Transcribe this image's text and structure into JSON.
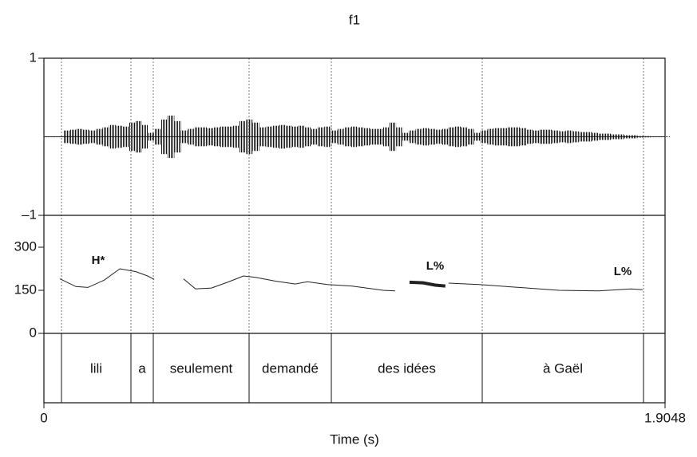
{
  "chart_data": {
    "type": "line",
    "title": "f1",
    "xlabel": "Time (s)",
    "xlim": [
      0,
      1.9048
    ],
    "xticks": [
      0,
      1.9048
    ],
    "waveform": {
      "ylim": [
        -1,
        1
      ],
      "yticks": [
        {
          "value": -1,
          "label": "–1"
        },
        1
      ],
      "color": "#111111",
      "x": [
        0,
        0.02,
        0.04,
        0.06,
        0.08,
        0.1,
        0.12,
        0.14,
        0.16,
        0.18,
        0.2,
        0.22,
        0.24,
        0.26,
        0.28,
        0.3,
        0.32,
        0.34,
        0.36,
        0.38,
        0.4,
        0.42,
        0.44,
        0.46,
        0.48,
        0.5,
        0.52,
        0.54,
        0.56,
        0.58,
        0.6,
        0.62,
        0.64,
        0.66,
        0.68,
        0.7,
        0.72,
        0.74,
        0.76,
        0.78,
        0.8,
        0.82,
        0.84,
        0.86,
        0.88,
        0.9,
        0.92,
        0.94,
        0.96,
        0.98,
        1,
        1.02,
        1.04,
        1.06,
        1.08,
        1.1,
        1.12,
        1.14,
        1.16,
        1.18,
        1.2,
        1.22,
        1.24,
        1.26,
        1.28,
        1.3,
        1.32,
        1.34,
        1.36,
        1.38,
        1.4,
        1.42,
        1.44,
        1.46,
        1.48,
        1.5,
        1.52,
        1.54,
        1.56,
        1.58,
        1.6,
        1.62,
        1.64,
        1.66,
        1.68,
        1.7,
        1.72,
        1.74,
        1.76,
        1.78,
        1.8,
        1.82,
        1.84,
        1.86,
        1.88,
        1.9
      ],
      "values": [
        0.005,
        0.005,
        0.005,
        0.08,
        0.09,
        0.1,
        0.09,
        0.08,
        0.1,
        0.12,
        0.15,
        0.14,
        0.13,
        0.18,
        0.2,
        0.15,
        0.05,
        0.1,
        0.22,
        0.27,
        0.2,
        0.08,
        0.1,
        0.12,
        0.12,
        0.11,
        0.12,
        0.13,
        0.13,
        0.14,
        0.2,
        0.22,
        0.18,
        0.12,
        0.13,
        0.14,
        0.15,
        0.14,
        0.13,
        0.14,
        0.12,
        0.1,
        0.12,
        0.13,
        0.08,
        0.1,
        0.12,
        0.13,
        0.12,
        0.11,
        0.1,
        0.1,
        0.12,
        0.18,
        0.12,
        0.05,
        0.08,
        0.1,
        0.11,
        0.1,
        0.09,
        0.1,
        0.12,
        0.13,
        0.12,
        0.1,
        0.05,
        0.08,
        0.1,
        0.11,
        0.11,
        0.12,
        0.12,
        0.11,
        0.09,
        0.08,
        0.09,
        0.09,
        0.08,
        0.07,
        0.08,
        0.07,
        0.06,
        0.06,
        0.05,
        0.04,
        0.04,
        0.03,
        0.03,
        0.02,
        0.02,
        0.01,
        0.008,
        0.005,
        0.005,
        0.005
      ]
    },
    "pitch": {
      "ylim": [
        0,
        411
      ],
      "yticks": [
        0,
        150,
        300
      ],
      "color": "#222222",
      "x": [
        0.049,
        0.098,
        0.135,
        0.184,
        0.233,
        0.282,
        0.318,
        0.338,
        0.38,
        0.428,
        0.465,
        0.514,
        0.563,
        0.612,
        0.649,
        0.71,
        0.771,
        0.808,
        0.869,
        0.943,
        1.041,
        1.077,
        1.1,
        1.241,
        1.334,
        1.457,
        1.579,
        1.702,
        1.8,
        1.836
      ],
      "values": [
        190,
        163,
        160,
        185,
        225,
        215,
        200,
        188,
        null,
        190,
        155,
        158,
        178,
        200,
        195,
        182,
        172,
        180,
        170,
        165,
        150,
        148,
        null,
        175,
        170,
        160,
        150,
        148,
        155,
        152
      ],
      "highlight": {
        "x": [
          1.121,
          1.163,
          1.2,
          1.231
        ],
        "values": [
          178,
          176,
          168,
          165
        ]
      },
      "annotations": [
        "H*",
        "L%",
        "L%"
      ]
    },
    "tier": {
      "boundaries": [
        0.0539,
        0.2669,
        0.3354,
        0.6292,
        0.8814,
        1.3441,
        1.8387
      ],
      "labels": [
        "lili",
        "a",
        "seulement",
        "demandé",
        "des idées",
        "à Gaël"
      ]
    }
  }
}
